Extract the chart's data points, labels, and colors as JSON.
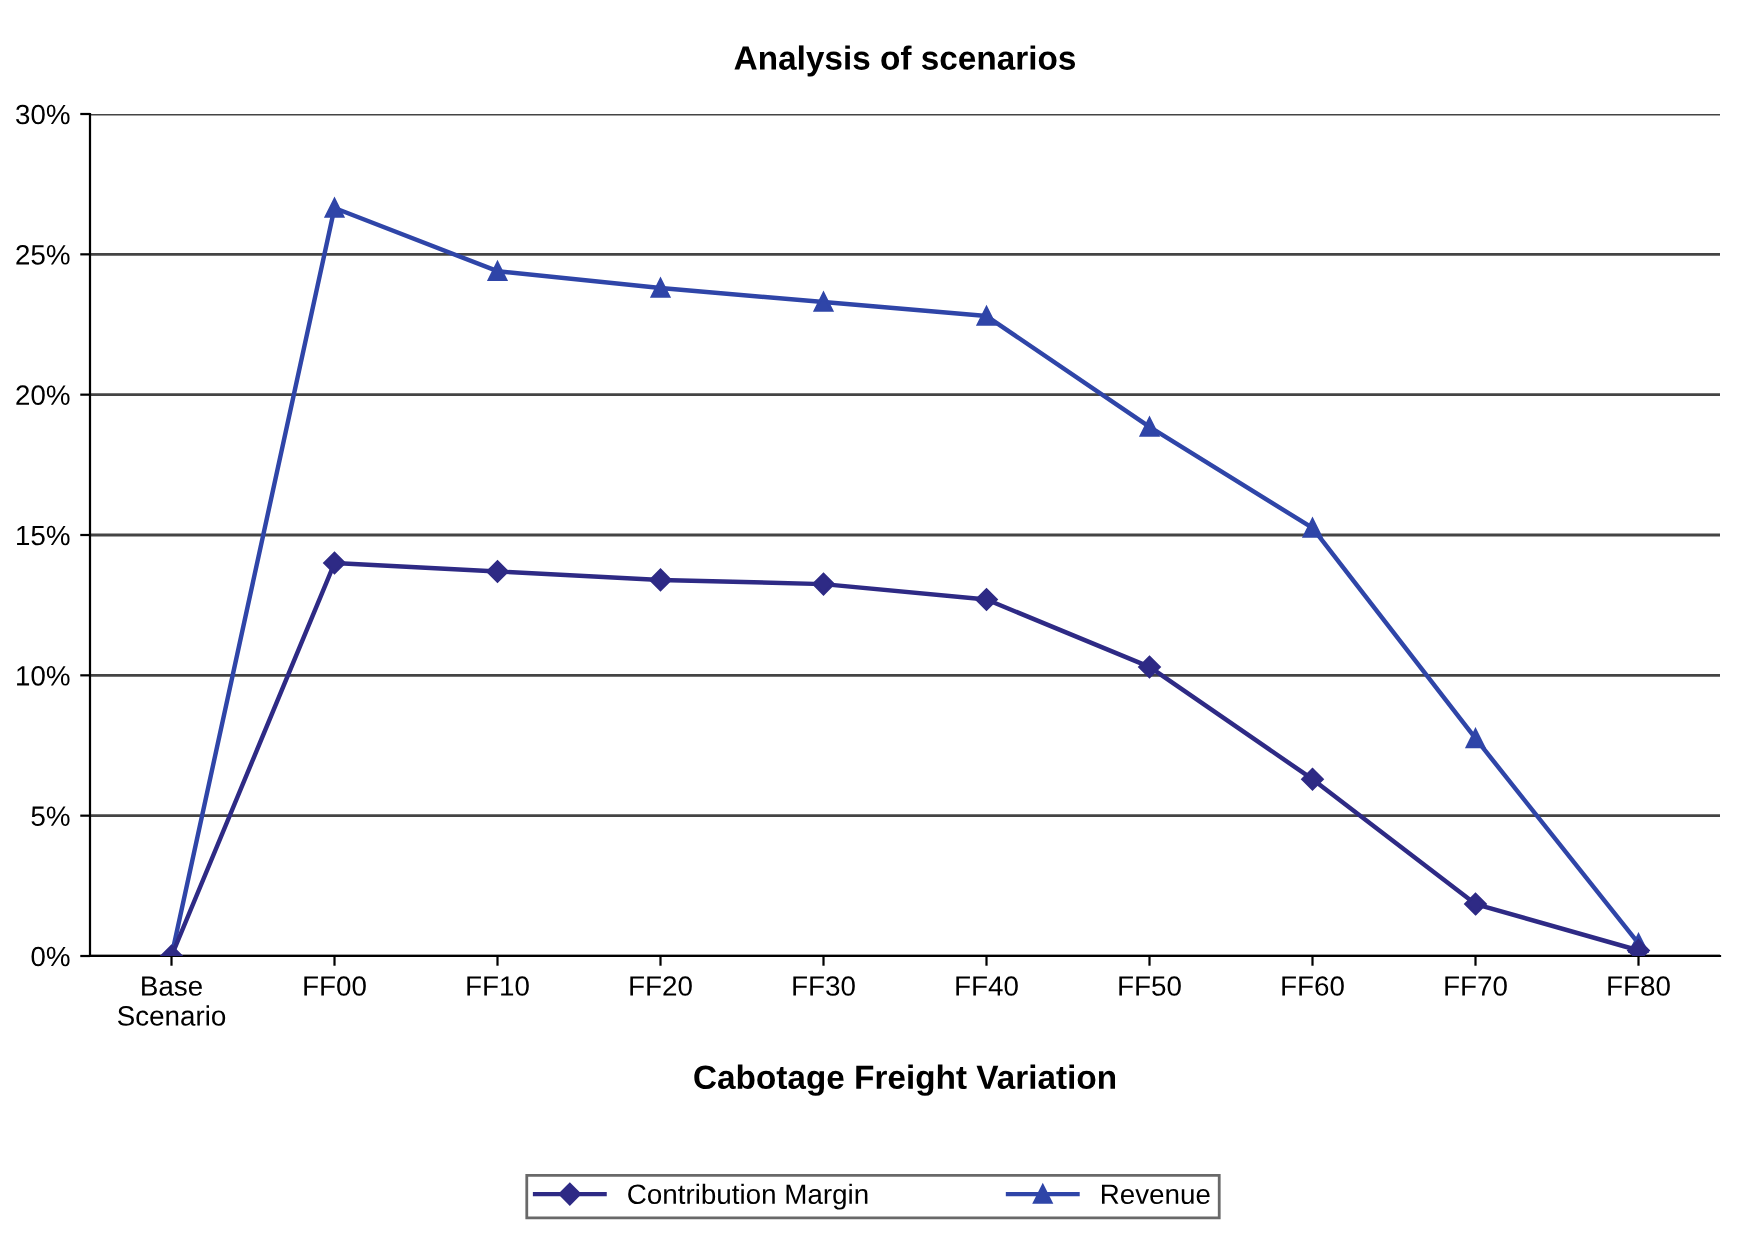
{
  "chart_data": {
    "type": "line",
    "title": "Analysis of scenarios",
    "xlabel": "Cabotage Freight Variation",
    "categories": [
      "Base\nScenario",
      "FF00",
      "FF10",
      "FF20",
      "FF30",
      "FF40",
      "FF50",
      "FF60",
      "FF70",
      "FF80"
    ],
    "series": [
      {
        "name": "Contribution Margin",
        "color": "#2e2a85",
        "marker": "diamond",
        "values": [
          0,
          14.0,
          13.7,
          13.4,
          13.25,
          12.7,
          10.3,
          6.3,
          1.85,
          0.2
        ]
      },
      {
        "name": "Revenue",
        "color": "#2f45a8",
        "marker": "triangle",
        "values": [
          0,
          26.65,
          24.4,
          23.8,
          23.3,
          22.8,
          18.85,
          15.25,
          7.75,
          0.45
        ]
      }
    ],
    "ylim": [
      0,
      30
    ],
    "yticks": [
      {
        "value": 0,
        "label": "0%"
      },
      {
        "value": 5,
        "label": "5%"
      },
      {
        "value": 10,
        "label": "10%"
      },
      {
        "value": 15,
        "label": "15%"
      },
      {
        "value": 20,
        "label": "20%"
      },
      {
        "value": 25,
        "label": "25%"
      },
      {
        "value": 30,
        "label": "30%"
      }
    ],
    "grid": "y",
    "legend": "bottom",
    "line_style": "solid"
  }
}
